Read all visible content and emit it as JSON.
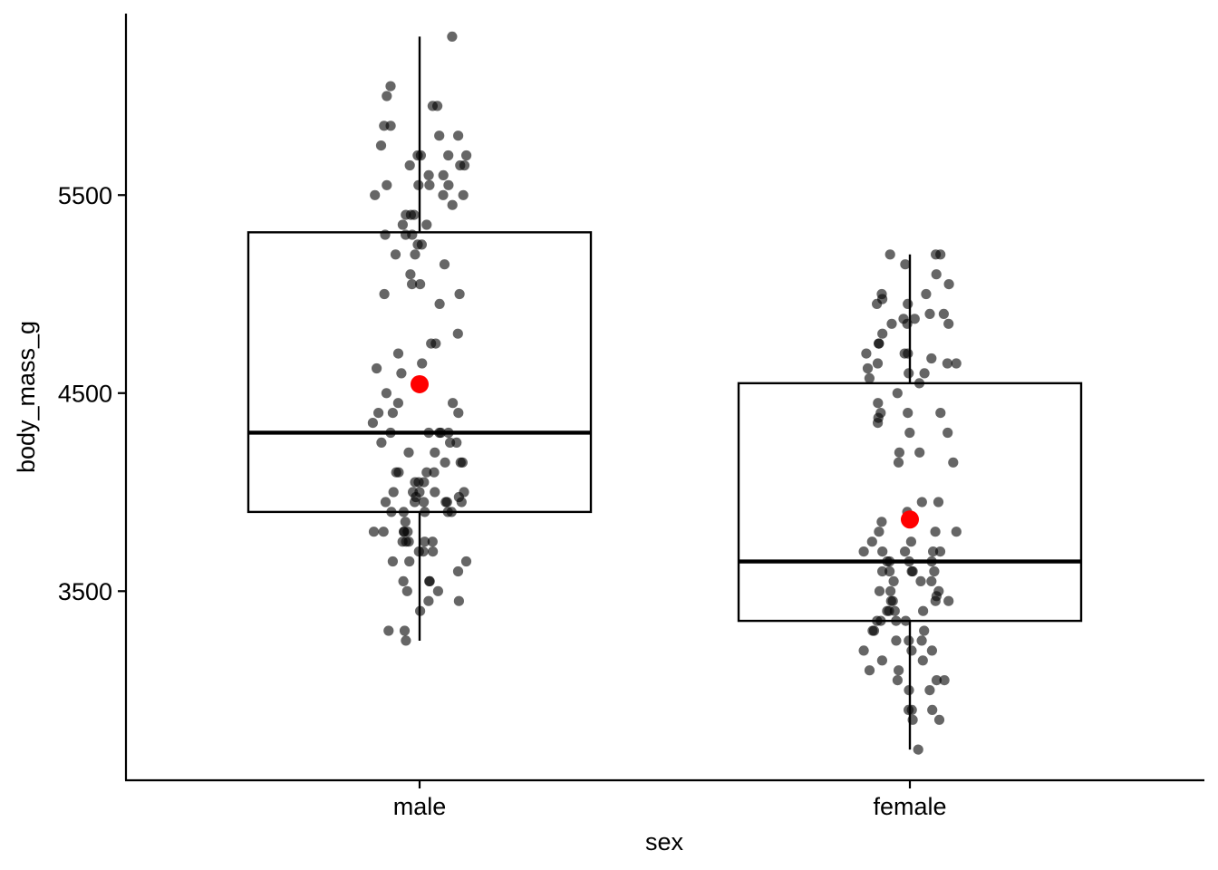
{
  "chart_data": {
    "type": "boxplot",
    "xlabel": "sex",
    "ylabel": "body_mass_g",
    "categories": [
      "male",
      "female"
    ],
    "yticks": [
      3500,
      4500,
      5500
    ],
    "ytick_labels": [
      "3500",
      "4500",
      "5500"
    ],
    "ylim": [
      2545,
      6485
    ],
    "grid": false,
    "boxes": [
      {
        "category": "male",
        "lower_whisker": 3250,
        "q1": 3900,
        "median": 4300,
        "q3": 5312,
        "upper_whisker": 6300,
        "mean": 4545
      },
      {
        "category": "female",
        "lower_whisker": 2700,
        "q1": 3350,
        "median": 3650,
        "q3": 4550,
        "upper_whisker": 5200,
        "mean": 3862
      }
    ],
    "points": [
      {
        "category": "male",
        "values": [
          6300,
          6000,
          6050,
          5950,
          5950,
          5850,
          5850,
          5800,
          5800,
          5750,
          5700,
          5700,
          5700,
          5700,
          5650,
          5650,
          5650,
          5600,
          5600,
          5550,
          5550,
          5550,
          5550,
          5500,
          5500,
          5500,
          5450,
          5400,
          5400,
          5400,
          5350,
          5350,
          5300,
          5300,
          5300,
          5250,
          5250,
          5200,
          5200,
          5150,
          5100,
          5050,
          5050,
          5000,
          5000,
          4950,
          4800,
          4750,
          4750,
          4700,
          4650,
          4625,
          4600,
          4500,
          4450,
          4450,
          4400,
          4400,
          4400,
          4350,
          4300,
          4300,
          4300,
          4300,
          4300,
          4250,
          4250,
          4250,
          4200,
          4200,
          4150,
          4150,
          4150,
          4100,
          4100,
          4100,
          4100,
          4050,
          4050,
          4050,
          4000,
          4000,
          4000,
          4000,
          4000,
          3975,
          3975,
          3950,
          3950,
          3950,
          3950,
          3950,
          3950,
          3900,
          3900,
          3900,
          3900,
          3900,
          3850,
          3800,
          3800,
          3800,
          3800,
          3800,
          3750,
          3750,
          3750,
          3750,
          3750,
          3700,
          3700,
          3700,
          3650,
          3650,
          3650,
          3600,
          3550,
          3550,
          3550,
          3500,
          3500,
          3450,
          3450,
          3400,
          3300,
          3300,
          3250
        ]
      },
      {
        "category": "female",
        "values": [
          5200,
          5200,
          5200,
          5150,
          5100,
          5050,
          5000,
          5000,
          4975,
          4950,
          4950,
          4900,
          4900,
          4875,
          4875,
          4850,
          4850,
          4850,
          4800,
          4750,
          4750,
          4700,
          4700,
          4700,
          4675,
          4650,
          4650,
          4650,
          4625,
          4600,
          4600,
          4575,
          4550,
          4500,
          4450,
          4400,
          4400,
          4400,
          4375,
          4350,
          4300,
          4300,
          4200,
          4200,
          4150,
          4150,
          3950,
          3950,
          3900,
          3850,
          3800,
          3800,
          3800,
          3750,
          3750,
          3700,
          3700,
          3700,
          3700,
          3700,
          3650,
          3650,
          3650,
          3650,
          3600,
          3600,
          3600,
          3600,
          3600,
          3550,
          3550,
          3550,
          3500,
          3500,
          3500,
          3475,
          3450,
          3450,
          3450,
          3450,
          3400,
          3400,
          3400,
          3400,
          3350,
          3350,
          3350,
          3350,
          3300,
          3300,
          3300,
          3250,
          3250,
          3250,
          3200,
          3200,
          3200,
          3150,
          3150,
          3100,
          3100,
          3050,
          3050,
          3050,
          3000,
          3000,
          2900,
          2900,
          2900,
          2850,
          2850,
          2700
        ]
      }
    ],
    "colors": {
      "box": "#000000",
      "points": "#000000",
      "mean": "#ff0000"
    }
  }
}
